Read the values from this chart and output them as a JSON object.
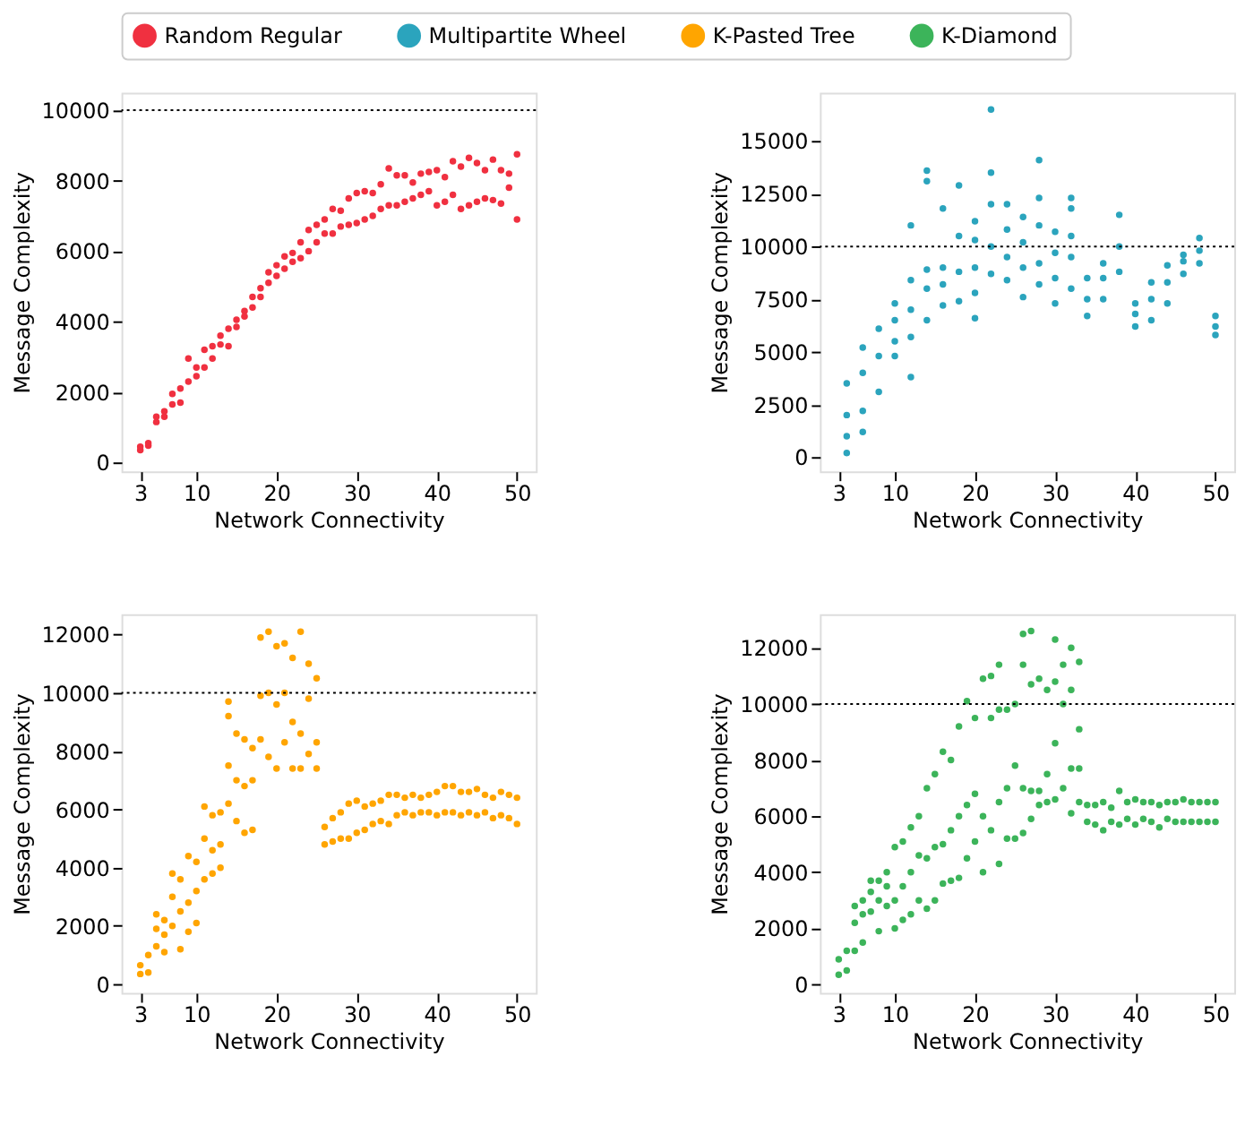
{
  "chart_data": [
    {
      "type": "scatter",
      "xlabel": "Network Connectivity",
      "ylabel": "Message Complexity",
      "xlim": [
        0.65,
        52.35
      ],
      "xticks": [
        3,
        10,
        20,
        30,
        40,
        50
      ],
      "ylim": [
        -250,
        10500
      ],
      "yticks": [
        0,
        2000,
        4000,
        6000,
        8000,
        10000
      ],
      "grid": false,
      "legend": "top",
      "marker": "circle",
      "ref_lines": [
        {
          "axis": "y",
          "value": 10000,
          "color": "#000000",
          "line_style": "dotted"
        }
      ],
      "series": [
        {
          "name": "Random Regular",
          "color": "#f03040",
          "x": [
            3,
            3,
            4,
            4,
            5,
            5,
            6,
            6,
            7,
            7,
            8,
            8,
            9,
            9,
            10,
            10,
            11,
            11,
            12,
            12,
            13,
            13,
            14,
            14,
            15,
            15,
            16,
            16,
            17,
            17,
            18,
            18,
            19,
            19,
            20,
            20,
            21,
            21,
            22,
            22,
            23,
            23,
            24,
            24,
            25,
            25,
            26,
            26,
            27,
            27,
            28,
            28,
            29,
            29,
            30,
            30,
            31,
            31,
            32,
            32,
            33,
            33,
            34,
            34,
            35,
            35,
            36,
            36,
            37,
            37,
            38,
            38,
            39,
            39,
            40,
            40,
            41,
            41,
            42,
            42,
            43,
            43,
            44,
            44,
            45,
            45,
            46,
            46,
            47,
            47,
            48,
            48,
            49,
            49,
            50,
            50
          ],
          "values": [
            350,
            450,
            480,
            550,
            1150,
            1300,
            1300,
            1450,
            1650,
            1950,
            1700,
            2100,
            2300,
            2950,
            2450,
            2700,
            2700,
            3200,
            2950,
            3300,
            3350,
            3600,
            3300,
            3800,
            3850,
            4050,
            4150,
            4300,
            4400,
            4700,
            4700,
            4950,
            5100,
            5400,
            5300,
            5600,
            5500,
            5850,
            5700,
            5950,
            5800,
            6250,
            6000,
            6600,
            6250,
            6750,
            6500,
            6900,
            6500,
            7200,
            6700,
            7150,
            6750,
            7500,
            6800,
            7650,
            6900,
            7700,
            7000,
            7650,
            7200,
            7900,
            7300,
            8350,
            7300,
            8150,
            7400,
            8150,
            7500,
            7950,
            7600,
            8200,
            7700,
            8250,
            7300,
            8300,
            7400,
            8100,
            7600,
            8550,
            7200,
            8400,
            7300,
            8650,
            7400,
            8500,
            7500,
            8300,
            7450,
            8600,
            7350,
            8300,
            7800,
            8200,
            6900,
            8750
          ]
        }
      ]
    },
    {
      "type": "scatter",
      "xlabel": "Network Connectivity",
      "ylabel": "Message Complexity",
      "xlim": [
        0.65,
        52.35
      ],
      "xticks": [
        3,
        10,
        20,
        30,
        40,
        50
      ],
      "ylim": [
        -670,
        17300
      ],
      "yticks": [
        0,
        2500,
        5000,
        7500,
        10000,
        12500,
        15000
      ],
      "grid": false,
      "legend": "top",
      "marker": "circle",
      "ref_lines": [
        {
          "axis": "y",
          "value": 10000,
          "color": "#000000",
          "line_style": "dotted"
        }
      ],
      "series": [
        {
          "name": "Multipartite Wheel",
          "color": "#2ba4bd",
          "x": [
            4,
            4,
            4,
            4,
            6,
            6,
            6,
            6,
            8,
            8,
            8,
            10,
            10,
            10,
            10,
            12,
            12,
            12,
            12,
            12,
            14,
            14,
            14,
            14,
            14,
            16,
            16,
            16,
            16,
            18,
            18,
            18,
            18,
            20,
            20,
            20,
            20,
            20,
            22,
            22,
            22,
            22,
            22,
            24,
            24,
            24,
            24,
            26,
            26,
            26,
            26,
            28,
            28,
            28,
            28,
            28,
            30,
            30,
            30,
            30,
            32,
            32,
            32,
            32,
            32,
            34,
            34,
            34,
            36,
            36,
            36,
            38,
            38,
            38,
            40,
            40,
            40,
            42,
            42,
            42,
            44,
            44,
            44,
            46,
            46,
            46,
            48,
            48,
            48,
            50,
            50,
            50
          ],
          "values": [
            200,
            1000,
            2000,
            3500,
            1200,
            2200,
            4000,
            5200,
            3100,
            4800,
            6100,
            4800,
            5500,
            6500,
            7300,
            3800,
            5700,
            7000,
            8400,
            11000,
            6500,
            8000,
            8900,
            13100,
            13600,
            7200,
            8200,
            9000,
            11800,
            7400,
            8800,
            10500,
            12900,
            6600,
            7800,
            9000,
            10300,
            11200,
            8700,
            10000,
            12000,
            13500,
            16500,
            8400,
            9500,
            10800,
            12000,
            7600,
            9000,
            10200,
            11400,
            8200,
            9200,
            11000,
            12300,
            14100,
            7300,
            8500,
            9700,
            10700,
            8000,
            9500,
            10500,
            11800,
            12300,
            6700,
            7500,
            8500,
            7500,
            8500,
            9200,
            8800,
            10000,
            11500,
            6200,
            6800,
            7300,
            6500,
            7500,
            8300,
            7300,
            8300,
            9100,
            8700,
            9300,
            9600,
            9200,
            9800,
            10400,
            5800,
            6200,
            6700
          ]
        }
      ]
    },
    {
      "type": "scatter",
      "xlabel": "Network Connectivity",
      "ylabel": "Message Complexity",
      "xlim": [
        0.65,
        52.35
      ],
      "xticks": [
        3,
        10,
        20,
        30,
        40,
        50
      ],
      "ylim": [
        -300,
        12700
      ],
      "yticks": [
        0,
        2000,
        4000,
        6000,
        8000,
        10000,
        12000
      ],
      "grid": false,
      "legend": "top",
      "marker": "circle",
      "ref_lines": [
        {
          "axis": "y",
          "value": 10000,
          "color": "#000000",
          "line_style": "dotted"
        }
      ],
      "series": [
        {
          "name": "K-Pasted Tree",
          "color": "#ffa500",
          "x": [
            3,
            3,
            4,
            4,
            5,
            5,
            5,
            6,
            6,
            6,
            7,
            7,
            7,
            8,
            8,
            8,
            9,
            9,
            9,
            10,
            10,
            10,
            11,
            11,
            11,
            12,
            12,
            12,
            13,
            13,
            13,
            14,
            14,
            14,
            14,
            15,
            15,
            15,
            16,
            16,
            16,
            17,
            17,
            17,
            18,
            18,
            18,
            19,
            19,
            19,
            20,
            20,
            20,
            21,
            21,
            21,
            22,
            22,
            22,
            23,
            23,
            23,
            24,
            24,
            24,
            25,
            25,
            25,
            26,
            26,
            27,
            27,
            28,
            28,
            29,
            29,
            30,
            30,
            31,
            31,
            32,
            32,
            33,
            33,
            34,
            34,
            35,
            35,
            36,
            36,
            37,
            37,
            38,
            38,
            39,
            39,
            40,
            40,
            41,
            41,
            42,
            42,
            43,
            43,
            44,
            44,
            45,
            45,
            46,
            46,
            47,
            47,
            48,
            48,
            49,
            49,
            50,
            50
          ],
          "values": [
            350,
            650,
            400,
            1000,
            1300,
            1900,
            2400,
            1100,
            1700,
            2200,
            2000,
            3000,
            3800,
            1200,
            2500,
            3600,
            1800,
            2800,
            4400,
            2100,
            3200,
            4200,
            3600,
            5000,
            6100,
            3800,
            4600,
            5800,
            4000,
            4800,
            5900,
            6200,
            7500,
            9200,
            9700,
            5600,
            7000,
            8600,
            5200,
            6800,
            8400,
            5300,
            7000,
            8100,
            8400,
            9900,
            11900,
            7800,
            10000,
            12100,
            7400,
            9600,
            11600,
            8300,
            10000,
            11700,
            7400,
            9000,
            11200,
            7400,
            8600,
            12100,
            7900,
            9800,
            11000,
            7400,
            8300,
            10500,
            4800,
            5400,
            4900,
            5700,
            5000,
            5900,
            5000,
            6200,
            5200,
            6300,
            5300,
            6100,
            5500,
            6200,
            5600,
            6300,
            5500,
            6500,
            5800,
            6500,
            5900,
            6400,
            5800,
            6500,
            5900,
            6400,
            5900,
            6500,
            5800,
            6600,
            5900,
            6800,
            5900,
            6800,
            5800,
            6600,
            5900,
            6600,
            5800,
            6700,
            5900,
            6500,
            5700,
            6400,
            5800,
            6600,
            5700,
            6500,
            5500,
            6400
          ]
        }
      ]
    },
    {
      "type": "scatter",
      "xlabel": "Network Connectivity",
      "ylabel": "Message Complexity",
      "xlim": [
        0.65,
        52.35
      ],
      "xticks": [
        3,
        10,
        20,
        30,
        40,
        50
      ],
      "ylim": [
        -300,
        13200
      ],
      "yticks": [
        0,
        2000,
        4000,
        6000,
        8000,
        10000,
        12000
      ],
      "grid": false,
      "legend": "top",
      "marker": "circle",
      "ref_lines": [
        {
          "axis": "y",
          "value": 10000,
          "color": "#000000",
          "line_style": "dotted"
        }
      ],
      "series": [
        {
          "name": "K-Diamond",
          "color": "#3cb45a",
          "x": [
            3,
            3,
            4,
            4,
            5,
            5,
            5,
            6,
            6,
            6,
            7,
            7,
            7,
            8,
            8,
            8,
            9,
            9,
            9,
            10,
            10,
            10,
            11,
            11,
            11,
            12,
            12,
            12,
            13,
            13,
            13,
            14,
            14,
            14,
            15,
            15,
            15,
            16,
            16,
            16,
            17,
            17,
            17,
            18,
            18,
            18,
            19,
            19,
            19,
            20,
            20,
            20,
            21,
            21,
            21,
            22,
            22,
            22,
            23,
            23,
            23,
            23,
            24,
            24,
            24,
            25,
            25,
            25,
            26,
            26,
            26,
            26,
            27,
            27,
            27,
            27,
            28,
            28,
            28,
            29,
            29,
            29,
            30,
            30,
            30,
            30,
            31,
            31,
            31,
            32,
            32,
            32,
            32,
            33,
            33,
            33,
            33,
            34,
            34,
            35,
            35,
            36,
            36,
            37,
            37,
            38,
            38,
            39,
            39,
            40,
            40,
            41,
            41,
            42,
            42,
            43,
            43,
            44,
            44,
            45,
            45,
            46,
            46,
            47,
            47,
            48,
            48,
            49,
            49,
            50,
            50
          ],
          "values": [
            350,
            900,
            500,
            1200,
            1200,
            2200,
            2800,
            1500,
            2500,
            3000,
            2600,
            3300,
            3700,
            1900,
            3000,
            3700,
            2800,
            3500,
            4000,
            2000,
            3000,
            4900,
            2300,
            3500,
            5100,
            2500,
            4000,
            5600,
            3000,
            4600,
            6000,
            2700,
            4500,
            7000,
            3000,
            4900,
            7500,
            3600,
            5000,
            8300,
            3700,
            5500,
            8000,
            3800,
            6000,
            9200,
            4500,
            6400,
            10100,
            5100,
            6800,
            9500,
            4000,
            6000,
            10900,
            5500,
            9500,
            11000,
            4300,
            6500,
            9800,
            11400,
            5200,
            7000,
            9800,
            5200,
            7800,
            10000,
            5400,
            7000,
            11400,
            12500,
            5900,
            6900,
            10700,
            12600,
            6400,
            6900,
            10900,
            6500,
            7500,
            10500,
            6600,
            8600,
            10800,
            12300,
            7000,
            10000,
            11400,
            6100,
            7700,
            10500,
            12000,
            6500,
            7700,
            9100,
            11500,
            5800,
            6400,
            5700,
            6400,
            5500,
            6500,
            5800,
            6300,
            5700,
            6900,
            5900,
            6500,
            5700,
            6600,
            5900,
            6500,
            5800,
            6500,
            5600,
            6400,
            5900,
            6500,
            5800,
            6500,
            5800,
            6600,
            5800,
            6500,
            5800,
            6500,
            5800,
            6500,
            5800,
            6500
          ]
        }
      ]
    }
  ]
}
